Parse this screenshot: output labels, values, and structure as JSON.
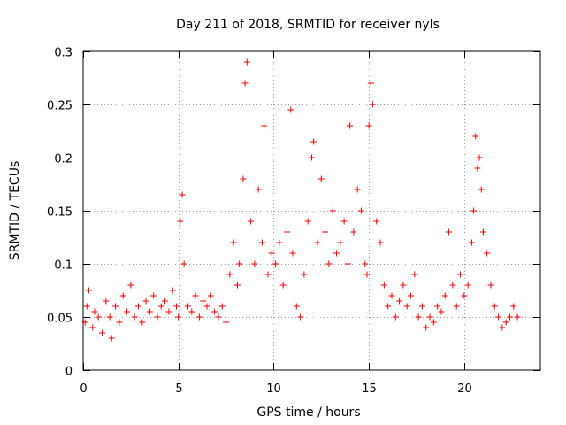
{
  "chart_data": {
    "type": "scatter",
    "title": "Day 211 of 2018, SRMTID for receiver nyls",
    "xlabel": "GPS time / hours",
    "ylabel": "SRMTID / TECUs",
    "xlim": [
      0,
      24
    ],
    "ylim": [
      0,
      0.3
    ],
    "xticks": [
      0,
      5,
      10,
      15,
      20
    ],
    "xtick_labels": [
      "0",
      "5",
      "10",
      "15",
      "20"
    ],
    "yticks": [
      0,
      0.05,
      0.1,
      0.15,
      0.2,
      0.25,
      0.3
    ],
    "ytick_labels": [
      "0",
      "0.05",
      "0.1",
      "0.15",
      "0.2",
      "0.25",
      "0.3"
    ],
    "grid": true,
    "marker": "+",
    "color": "#ff0000",
    "series": [
      {
        "name": "SRMTID",
        "x": [
          0.1,
          0.2,
          0.3,
          0.5,
          0.6,
          0.8,
          1.0,
          1.2,
          1.4,
          1.5,
          1.7,
          1.9,
          2.1,
          2.3,
          2.5,
          2.7,
          2.9,
          3.1,
          3.3,
          3.5,
          3.7,
          3.9,
          4.1,
          4.3,
          4.5,
          4.7,
          4.9,
          5.0,
          5.1,
          5.2,
          5.3,
          5.5,
          5.7,
          5.9,
          6.1,
          6.3,
          6.5,
          6.7,
          6.9,
          7.1,
          7.3,
          7.5,
          7.7,
          7.9,
          8.1,
          8.2,
          8.4,
          8.5,
          8.6,
          8.8,
          9.0,
          9.2,
          9.4,
          9.5,
          9.7,
          9.9,
          10.1,
          10.3,
          10.5,
          10.7,
          10.9,
          11.0,
          11.2,
          11.4,
          11.6,
          11.8,
          12.0,
          12.1,
          12.3,
          12.5,
          12.7,
          12.9,
          13.1,
          13.3,
          13.5,
          13.7,
          13.9,
          14.0,
          14.2,
          14.4,
          14.6,
          14.8,
          14.9,
          15.0,
          15.1,
          15.2,
          15.4,
          15.6,
          15.8,
          16.0,
          16.2,
          16.4,
          16.6,
          16.8,
          17.0,
          17.2,
          17.4,
          17.6,
          17.8,
          18.0,
          18.2,
          18.4,
          18.6,
          18.8,
          19.0,
          19.2,
          19.4,
          19.6,
          19.8,
          20.0,
          20.2,
          20.4,
          20.5,
          20.6,
          20.7,
          20.8,
          20.9,
          21.0,
          21.2,
          21.4,
          21.6,
          21.8,
          22.0,
          22.2,
          22.4,
          22.6,
          22.8
        ],
        "y": [
          0.045,
          0.06,
          0.075,
          0.04,
          0.055,
          0.05,
          0.035,
          0.065,
          0.05,
          0.03,
          0.06,
          0.045,
          0.07,
          0.055,
          0.08,
          0.05,
          0.06,
          0.045,
          0.065,
          0.055,
          0.07,
          0.05,
          0.06,
          0.065,
          0.055,
          0.075,
          0.06,
          0.05,
          0.14,
          0.165,
          0.1,
          0.06,
          0.055,
          0.07,
          0.05,
          0.065,
          0.06,
          0.07,
          0.055,
          0.05,
          0.06,
          0.045,
          0.09,
          0.12,
          0.08,
          0.1,
          0.18,
          0.27,
          0.29,
          0.14,
          0.1,
          0.17,
          0.12,
          0.23,
          0.09,
          0.11,
          0.1,
          0.12,
          0.08,
          0.13,
          0.245,
          0.11,
          0.06,
          0.05,
          0.09,
          0.14,
          0.2,
          0.215,
          0.12,
          0.18,
          0.13,
          0.1,
          0.15,
          0.11,
          0.12,
          0.14,
          0.1,
          0.23,
          0.13,
          0.17,
          0.15,
          0.1,
          0.09,
          0.23,
          0.27,
          0.25,
          0.14,
          0.12,
          0.08,
          0.06,
          0.07,
          0.05,
          0.065,
          0.08,
          0.06,
          0.07,
          0.09,
          0.05,
          0.06,
          0.04,
          0.05,
          0.045,
          0.06,
          0.055,
          0.07,
          0.13,
          0.08,
          0.06,
          0.09,
          0.07,
          0.08,
          0.12,
          0.15,
          0.22,
          0.19,
          0.2,
          0.17,
          0.13,
          0.11,
          0.08,
          0.06,
          0.05,
          0.04,
          0.045,
          0.05,
          0.06,
          0.05
        ]
      }
    ]
  }
}
